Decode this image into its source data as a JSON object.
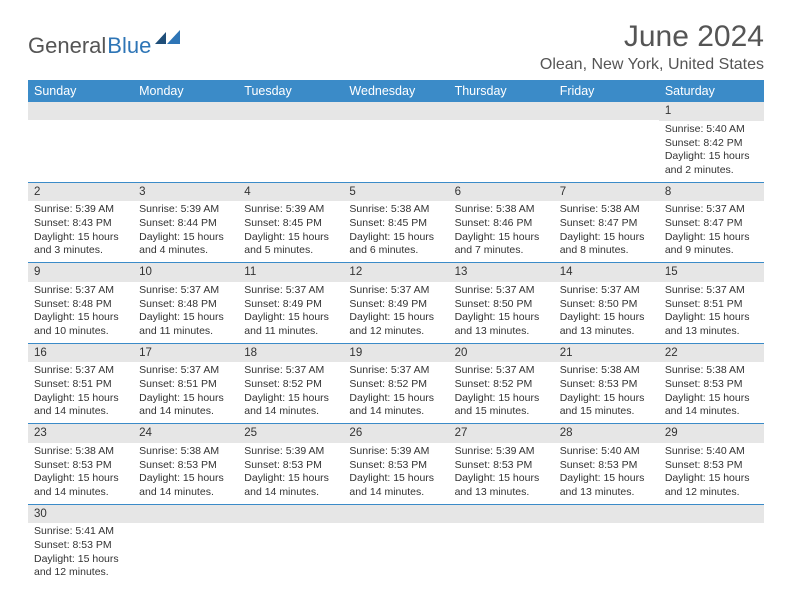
{
  "logo": {
    "text1": "General",
    "text2": "Blue"
  },
  "title": "June 2024",
  "location": "Olean, New York, United States",
  "colors": {
    "header_bg": "#3b8bc8",
    "header_text": "#ffffff",
    "daynum_bg": "#e6e6e6",
    "row_border": "#3b8bc8",
    "text": "#333333",
    "title_text": "#555555"
  },
  "weekdays": [
    "Sunday",
    "Monday",
    "Tuesday",
    "Wednesday",
    "Thursday",
    "Friday",
    "Saturday"
  ],
  "weeks": [
    [
      null,
      null,
      null,
      null,
      null,
      null,
      {
        "n": "1",
        "sr": "5:40 AM",
        "ss": "8:42 PM",
        "dl": "15 hours and 2 minutes."
      }
    ],
    [
      {
        "n": "2",
        "sr": "5:39 AM",
        "ss": "8:43 PM",
        "dl": "15 hours and 3 minutes."
      },
      {
        "n": "3",
        "sr": "5:39 AM",
        "ss": "8:44 PM",
        "dl": "15 hours and 4 minutes."
      },
      {
        "n": "4",
        "sr": "5:39 AM",
        "ss": "8:45 PM",
        "dl": "15 hours and 5 minutes."
      },
      {
        "n": "5",
        "sr": "5:38 AM",
        "ss": "8:45 PM",
        "dl": "15 hours and 6 minutes."
      },
      {
        "n": "6",
        "sr": "5:38 AM",
        "ss": "8:46 PM",
        "dl": "15 hours and 7 minutes."
      },
      {
        "n": "7",
        "sr": "5:38 AM",
        "ss": "8:47 PM",
        "dl": "15 hours and 8 minutes."
      },
      {
        "n": "8",
        "sr": "5:37 AM",
        "ss": "8:47 PM",
        "dl": "15 hours and 9 minutes."
      }
    ],
    [
      {
        "n": "9",
        "sr": "5:37 AM",
        "ss": "8:48 PM",
        "dl": "15 hours and 10 minutes."
      },
      {
        "n": "10",
        "sr": "5:37 AM",
        "ss": "8:48 PM",
        "dl": "15 hours and 11 minutes."
      },
      {
        "n": "11",
        "sr": "5:37 AM",
        "ss": "8:49 PM",
        "dl": "15 hours and 11 minutes."
      },
      {
        "n": "12",
        "sr": "5:37 AM",
        "ss": "8:49 PM",
        "dl": "15 hours and 12 minutes."
      },
      {
        "n": "13",
        "sr": "5:37 AM",
        "ss": "8:50 PM",
        "dl": "15 hours and 13 minutes."
      },
      {
        "n": "14",
        "sr": "5:37 AM",
        "ss": "8:50 PM",
        "dl": "15 hours and 13 minutes."
      },
      {
        "n": "15",
        "sr": "5:37 AM",
        "ss": "8:51 PM",
        "dl": "15 hours and 13 minutes."
      }
    ],
    [
      {
        "n": "16",
        "sr": "5:37 AM",
        "ss": "8:51 PM",
        "dl": "15 hours and 14 minutes."
      },
      {
        "n": "17",
        "sr": "5:37 AM",
        "ss": "8:51 PM",
        "dl": "15 hours and 14 minutes."
      },
      {
        "n": "18",
        "sr": "5:37 AM",
        "ss": "8:52 PM",
        "dl": "15 hours and 14 minutes."
      },
      {
        "n": "19",
        "sr": "5:37 AM",
        "ss": "8:52 PM",
        "dl": "15 hours and 14 minutes."
      },
      {
        "n": "20",
        "sr": "5:37 AM",
        "ss": "8:52 PM",
        "dl": "15 hours and 15 minutes."
      },
      {
        "n": "21",
        "sr": "5:38 AM",
        "ss": "8:53 PM",
        "dl": "15 hours and 15 minutes."
      },
      {
        "n": "22",
        "sr": "5:38 AM",
        "ss": "8:53 PM",
        "dl": "15 hours and 14 minutes."
      }
    ],
    [
      {
        "n": "23",
        "sr": "5:38 AM",
        "ss": "8:53 PM",
        "dl": "15 hours and 14 minutes."
      },
      {
        "n": "24",
        "sr": "5:38 AM",
        "ss": "8:53 PM",
        "dl": "15 hours and 14 minutes."
      },
      {
        "n": "25",
        "sr": "5:39 AM",
        "ss": "8:53 PM",
        "dl": "15 hours and 14 minutes."
      },
      {
        "n": "26",
        "sr": "5:39 AM",
        "ss": "8:53 PM",
        "dl": "15 hours and 14 minutes."
      },
      {
        "n": "27",
        "sr": "5:39 AM",
        "ss": "8:53 PM",
        "dl": "15 hours and 13 minutes."
      },
      {
        "n": "28",
        "sr": "5:40 AM",
        "ss": "8:53 PM",
        "dl": "15 hours and 13 minutes."
      },
      {
        "n": "29",
        "sr": "5:40 AM",
        "ss": "8:53 PM",
        "dl": "15 hours and 12 minutes."
      }
    ],
    [
      {
        "n": "30",
        "sr": "5:41 AM",
        "ss": "8:53 PM",
        "dl": "15 hours and 12 minutes."
      },
      null,
      null,
      null,
      null,
      null,
      null
    ]
  ],
  "labels": {
    "sunrise": "Sunrise:",
    "sunset": "Sunset:",
    "daylight": "Daylight:"
  }
}
